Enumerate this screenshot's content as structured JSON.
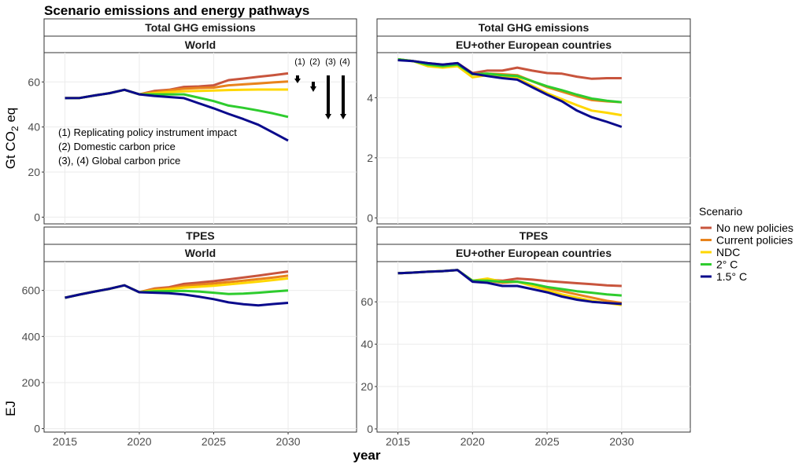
{
  "figure": {
    "title": "Scenario emissions and energy pathways",
    "xlabel": "year",
    "legend_title": "Scenario"
  },
  "annotations": {
    "markers": [
      "(1)",
      "(2)",
      "(3)",
      "(4)"
    ],
    "lines": [
      "(1) Replicating policy instrument impact",
      "(2) Domestic carbon price",
      "(3), (4) Global carbon price"
    ]
  },
  "colors": {
    "No new policies": "#C8553D",
    "Current policies": "#E8831C",
    "NDC": "#FFD700",
    "2° C": "#2ECC2E",
    "1.5° C": "#0A0A8C"
  },
  "chart_data": [
    {
      "id": "p1",
      "type": "line",
      "strip_top": "Total GHG emissions",
      "strip_bottom": "World",
      "ylabel": "Gt CO2 eq",
      "xlim": [
        2013.6,
        2034.6
      ],
      "ylim": [
        -3,
        73
      ],
      "yticks": [
        0,
        20,
        40,
        60
      ],
      "series": [
        {
          "name": "No new policies",
          "x": [
            2015,
            2016,
            2017,
            2018,
            2019,
            2020,
            2021,
            2022,
            2023,
            2024,
            2025,
            2026,
            2027,
            2028,
            2029,
            2030
          ],
          "values": [
            52.8,
            52.9,
            54.0,
            55.0,
            56.5,
            54.5,
            56.0,
            56.5,
            57.8,
            58.0,
            58.5,
            60.8,
            61.5,
            62.3,
            63.0,
            63.8
          ]
        },
        {
          "name": "Current policies",
          "x": [
            2015,
            2016,
            2017,
            2018,
            2019,
            2020,
            2021,
            2022,
            2023,
            2024,
            2025,
            2026,
            2027,
            2028,
            2029,
            2030
          ],
          "values": [
            52.8,
            52.9,
            54.0,
            55.0,
            56.5,
            54.5,
            55.5,
            56.3,
            57.0,
            57.3,
            57.5,
            58.5,
            58.9,
            59.3,
            59.8,
            60.2
          ]
        },
        {
          "name": "NDC",
          "x": [
            2015,
            2016,
            2017,
            2018,
            2019,
            2020,
            2021,
            2022,
            2023,
            2024,
            2025,
            2026,
            2027,
            2028,
            2029,
            2030
          ],
          "values": [
            52.8,
            52.9,
            54.0,
            55.0,
            56.5,
            54.5,
            55.0,
            55.5,
            55.8,
            56.0,
            56.2,
            56.4,
            56.5,
            56.6,
            56.6,
            56.6
          ]
        },
        {
          "name": "2° C",
          "x": [
            2015,
            2016,
            2017,
            2018,
            2019,
            2020,
            2021,
            2022,
            2023,
            2024,
            2025,
            2026,
            2027,
            2028,
            2029,
            2030
          ],
          "values": [
            52.8,
            52.9,
            54.0,
            55.0,
            56.5,
            54.5,
            54.5,
            54.5,
            54.5,
            53.0,
            51.5,
            49.5,
            48.5,
            47.3,
            46.0,
            44.5
          ]
        },
        {
          "name": "1.5° C",
          "x": [
            2015,
            2016,
            2017,
            2018,
            2019,
            2020,
            2021,
            2022,
            2023,
            2024,
            2025,
            2026,
            2027,
            2028,
            2029,
            2030
          ],
          "values": [
            52.8,
            52.9,
            54.0,
            55.0,
            56.5,
            54.5,
            53.8,
            53.3,
            52.8,
            50.5,
            48.3,
            45.8,
            43.5,
            41.0,
            37.5,
            34.0
          ]
        }
      ]
    },
    {
      "id": "p2",
      "type": "line",
      "strip_top": "Total GHG emissions",
      "strip_bottom": "EU+other European countries",
      "ylabel": "",
      "xlim": [
        2013.6,
        2034.6
      ],
      "ylim": [
        -0.2,
        5.5
      ],
      "yticks": [
        0,
        2,
        4
      ],
      "series": [
        {
          "name": "No new policies",
          "x": [
            2015,
            2016,
            2017,
            2018,
            2019,
            2020,
            2021,
            2022,
            2023,
            2024,
            2025,
            2026,
            2027,
            2028,
            2029,
            2030
          ],
          "values": [
            5.28,
            5.22,
            5.15,
            5.1,
            5.15,
            4.82,
            4.9,
            4.9,
            5.0,
            4.9,
            4.82,
            4.8,
            4.7,
            4.63,
            4.65,
            4.65
          ]
        },
        {
          "name": "Current policies",
          "x": [
            2015,
            2016,
            2017,
            2018,
            2019,
            2020,
            2021,
            2022,
            2023,
            2024,
            2025,
            2026,
            2027,
            2028,
            2029,
            2030
          ],
          "values": [
            5.28,
            5.22,
            5.1,
            5.05,
            5.1,
            4.78,
            4.8,
            4.78,
            4.75,
            4.55,
            4.35,
            4.2,
            4.05,
            3.92,
            3.88,
            3.85
          ]
        },
        {
          "name": "NDC",
          "x": [
            2015,
            2016,
            2017,
            2018,
            2019,
            2020,
            2021,
            2022,
            2023,
            2024,
            2025,
            2026,
            2027,
            2028,
            2029,
            2030
          ],
          "values": [
            5.28,
            5.22,
            5.05,
            5.0,
            5.05,
            4.68,
            4.75,
            4.7,
            4.65,
            4.4,
            4.15,
            3.95,
            3.75,
            3.57,
            3.5,
            3.42
          ]
        },
        {
          "name": "2° C",
          "x": [
            2015,
            2016,
            2017,
            2018,
            2019,
            2020,
            2021,
            2022,
            2023,
            2024,
            2025,
            2026,
            2027,
            2028,
            2029,
            2030
          ],
          "values": [
            5.28,
            5.22,
            5.1,
            5.05,
            5.1,
            4.78,
            4.8,
            4.75,
            4.72,
            4.55,
            4.38,
            4.25,
            4.1,
            3.97,
            3.9,
            3.85
          ]
        },
        {
          "name": "1.5° C",
          "x": [
            2015,
            2016,
            2017,
            2018,
            2019,
            2020,
            2021,
            2022,
            2023,
            2024,
            2025,
            2026,
            2027,
            2028,
            2029,
            2030
          ],
          "values": [
            5.25,
            5.22,
            5.15,
            5.1,
            5.15,
            4.8,
            4.72,
            4.65,
            4.6,
            4.35,
            4.1,
            3.88,
            3.57,
            3.35,
            3.2,
            3.03
          ]
        }
      ]
    },
    {
      "id": "p3",
      "type": "line",
      "strip_top": "TPES",
      "strip_bottom": "World",
      "ylabel": "EJ",
      "xlim": [
        2013.6,
        2034.6
      ],
      "ylim": [
        -15,
        725
      ],
      "yticks": [
        0,
        200,
        400,
        600
      ],
      "series": [
        {
          "name": "No new policies",
          "x": [
            2015,
            2016,
            2017,
            2018,
            2019,
            2020,
            2021,
            2022,
            2023,
            2024,
            2025,
            2026,
            2027,
            2028,
            2029,
            2030
          ],
          "values": [
            568,
            582,
            595,
            607,
            622,
            592,
            608,
            614,
            628,
            634,
            640,
            648,
            656,
            664,
            673,
            682
          ]
        },
        {
          "name": "Current policies",
          "x": [
            2015,
            2016,
            2017,
            2018,
            2019,
            2020,
            2021,
            2022,
            2023,
            2024,
            2025,
            2026,
            2027,
            2028,
            2029,
            2030
          ],
          "values": [
            568,
            582,
            595,
            607,
            622,
            592,
            606,
            610,
            620,
            625,
            630,
            636,
            642,
            649,
            656,
            664
          ]
        },
        {
          "name": "NDC",
          "x": [
            2015,
            2016,
            2017,
            2018,
            2019,
            2020,
            2021,
            2022,
            2023,
            2024,
            2025,
            2026,
            2027,
            2028,
            2029,
            2030
          ],
          "values": [
            568,
            582,
            595,
            607,
            622,
            592,
            600,
            605,
            612,
            616,
            620,
            626,
            632,
            638,
            645,
            652
          ]
        },
        {
          "name": "2° C",
          "x": [
            2015,
            2016,
            2017,
            2018,
            2019,
            2020,
            2021,
            2022,
            2023,
            2024,
            2025,
            2026,
            2027,
            2028,
            2029,
            2030
          ],
          "values": [
            568,
            582,
            595,
            607,
            622,
            592,
            596,
            597,
            598,
            595,
            590,
            584,
            586,
            590,
            595,
            600
          ]
        },
        {
          "name": "1.5° C",
          "x": [
            2015,
            2016,
            2017,
            2018,
            2019,
            2020,
            2021,
            2022,
            2023,
            2024,
            2025,
            2026,
            2027,
            2028,
            2029,
            2030
          ],
          "values": [
            568,
            582,
            595,
            607,
            622,
            592,
            590,
            588,
            582,
            573,
            562,
            548,
            540,
            535,
            541,
            546
          ]
        }
      ]
    },
    {
      "id": "p4",
      "type": "line",
      "strip_top": "TPES",
      "strip_bottom": "EU+other European countries",
      "ylabel": "",
      "xlim": [
        2013.6,
        2034.6
      ],
      "ylim": [
        -1.5,
        79
      ],
      "yticks": [
        0,
        20,
        40,
        60
      ],
      "series": [
        {
          "name": "No new policies",
          "x": [
            2015,
            2016,
            2017,
            2018,
            2019,
            2020,
            2021,
            2022,
            2023,
            2024,
            2025,
            2026,
            2027,
            2028,
            2029,
            2030
          ],
          "values": [
            73.5,
            73.8,
            74.2,
            74.5,
            75.0,
            70.0,
            70.5,
            70.0,
            71.0,
            70.5,
            69.8,
            69.3,
            68.8,
            68.3,
            67.8,
            67.5
          ]
        },
        {
          "name": "Current policies",
          "x": [
            2015,
            2016,
            2017,
            2018,
            2019,
            2020,
            2021,
            2022,
            2023,
            2024,
            2025,
            2026,
            2027,
            2028,
            2029,
            2030
          ],
          "values": [
            73.5,
            73.8,
            74.2,
            74.5,
            75.0,
            70.0,
            70.0,
            69.0,
            69.5,
            68.0,
            66.5,
            65.0,
            63.5,
            62.0,
            60.5,
            59.5
          ]
        },
        {
          "name": "NDC",
          "x": [
            2015,
            2016,
            2017,
            2018,
            2019,
            2020,
            2021,
            2022,
            2023,
            2024,
            2025,
            2026,
            2027,
            2028,
            2029,
            2030
          ],
          "values": [
            73.5,
            73.8,
            74.2,
            74.5,
            75.0,
            70.0,
            71.0,
            69.5,
            69.5,
            67.5,
            65.5,
            63.5,
            62.0,
            60.5,
            59.5,
            58.5
          ]
        },
        {
          "name": "2° C",
          "x": [
            2015,
            2016,
            2017,
            2018,
            2019,
            2020,
            2021,
            2022,
            2023,
            2024,
            2025,
            2026,
            2027,
            2028,
            2029,
            2030
          ],
          "values": [
            73.5,
            73.8,
            74.2,
            74.5,
            75.0,
            70.0,
            70.0,
            69.5,
            69.5,
            68.5,
            67.0,
            66.0,
            65.0,
            64.3,
            63.5,
            63.0
          ]
        },
        {
          "name": "1.5° C",
          "x": [
            2015,
            2016,
            2017,
            2018,
            2019,
            2020,
            2021,
            2022,
            2023,
            2024,
            2025,
            2026,
            2027,
            2028,
            2029,
            2030
          ],
          "values": [
            73.5,
            73.8,
            74.2,
            74.5,
            75.0,
            69.5,
            69.0,
            67.5,
            67.5,
            66.0,
            64.5,
            62.5,
            61.0,
            60.0,
            59.5,
            59.0
          ]
        }
      ]
    }
  ]
}
